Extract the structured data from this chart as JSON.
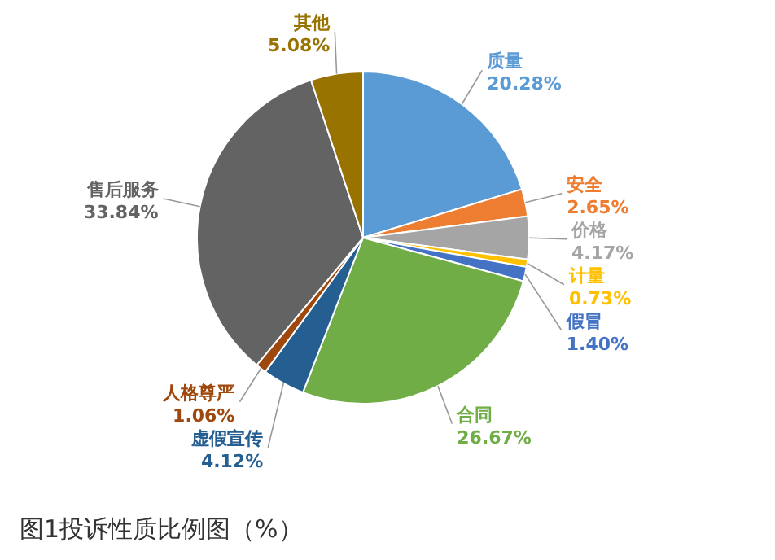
{
  "chart_data": {
    "type": "pie",
    "title": "图1投诉性质比例图（%）",
    "categories": [
      "质量",
      "安全",
      "价格",
      "计量",
      "假冒",
      "合同",
      "虚假宣传",
      "人格尊严",
      "售后服务",
      "其他"
    ],
    "values": [
      20.28,
      2.65,
      4.17,
      0.73,
      1.4,
      26.67,
      4.12,
      1.06,
      33.84,
      5.08
    ],
    "value_labels": [
      "20.28%",
      "2.65%",
      "4.17%",
      "0.73%",
      "1.40%",
      "26.67%",
      "4.12%",
      "1.06%",
      "33.84%",
      "5.08%"
    ],
    "colors": [
      "#5b9bd5",
      "#ed7d31",
      "#a5a5a5",
      "#ffc000",
      "#4472c4",
      "#70ad47",
      "#255e91",
      "#9e480e",
      "#636363",
      "#997300"
    ]
  }
}
